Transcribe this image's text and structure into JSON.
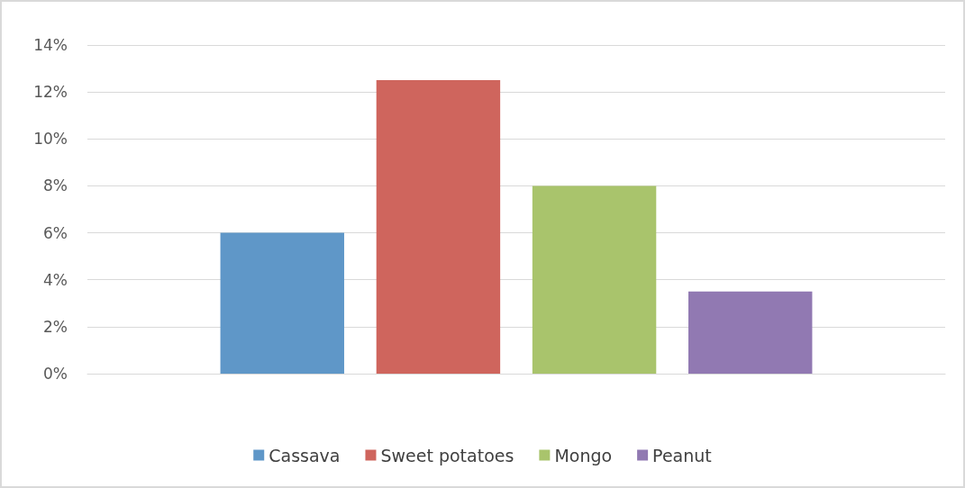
{
  "chart_data": {
    "type": "bar",
    "categories": [
      null
    ],
    "series": [
      {
        "name": "Cassava",
        "color": "#5f97c8",
        "values": [
          6
        ]
      },
      {
        "name": "Sweet potatoes",
        "color": "#cf655d",
        "values": [
          12.5
        ]
      },
      {
        "name": "Mongo",
        "color": "#a9c46c",
        "values": [
          8
        ]
      },
      {
        "name": "Peanut",
        "color": "#9179b2",
        "values": [
          3.5
        ]
      }
    ],
    "ylim": [
      0,
      14
    ],
    "yticks": [
      {
        "value": 0,
        "label": "0%"
      },
      {
        "value": 2,
        "label": "2%"
      },
      {
        "value": 4,
        "label": "4%"
      },
      {
        "value": 6,
        "label": "6%"
      },
      {
        "value": 8,
        "label": "8%"
      },
      {
        "value": 10,
        "label": "10%"
      },
      {
        "value": 12,
        "label": "12%"
      },
      {
        "value": 14,
        "label": "14%"
      }
    ],
    "grid": "y",
    "legend": "bottom"
  }
}
